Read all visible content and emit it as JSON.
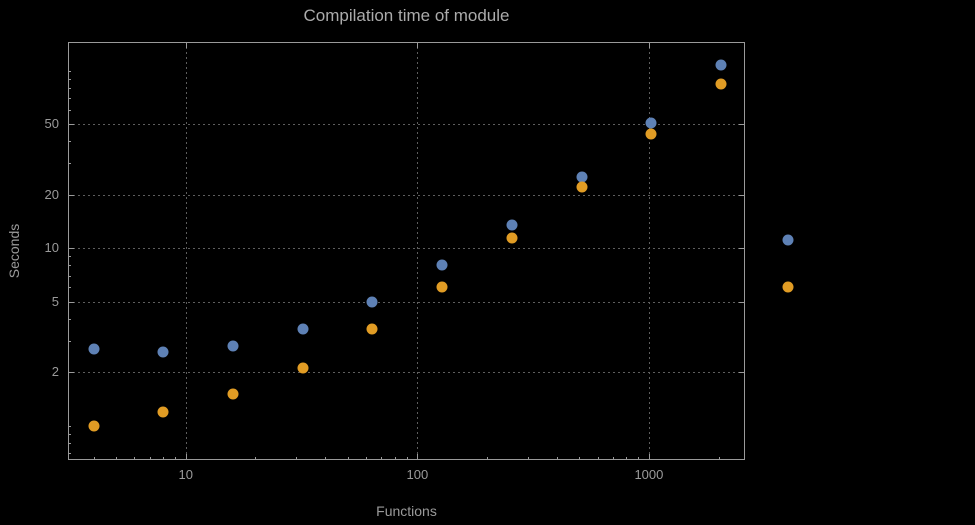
{
  "chart_data": {
    "type": "scatter",
    "title": "Compilation time of module",
    "xlabel": "Functions",
    "ylabel": "Seconds",
    "xscale": "log",
    "yscale": "log",
    "xlim": [
      3.1,
      2600
    ],
    "ylim": [
      0.64,
      145
    ],
    "grid": true,
    "x": [
      4,
      8,
      16,
      32,
      64,
      128,
      256,
      512,
      1024,
      2048
    ],
    "series": [
      {
        "name": "blue-series",
        "color": "#5e81b5",
        "values": [
          2.7,
          2.6,
          2.8,
          3.5,
          5.0,
          8.0,
          13.5,
          25,
          51,
          107
        ]
      },
      {
        "name": "orange-series",
        "color": "#e19c24",
        "values": [
          1.0,
          1.2,
          1.5,
          2.1,
          3.5,
          6.0,
          11.4,
          22,
          44,
          84
        ]
      }
    ],
    "xticks": [
      {
        "value": 10,
        "label": "10"
      },
      {
        "value": 100,
        "label": "100"
      },
      {
        "value": 1000,
        "label": "1000"
      }
    ],
    "yticks": [
      {
        "value": 2,
        "label": "2"
      },
      {
        "value": 5,
        "label": "5"
      },
      {
        "value": 10,
        "label": "10"
      },
      {
        "value": 20,
        "label": "20"
      },
      {
        "value": 50,
        "label": "50"
      }
    ],
    "legend_position": "right"
  },
  "legend": {
    "markers": [
      {
        "name": "blue-legend-marker",
        "color": "#5e81b5"
      },
      {
        "name": "orange-legend-marker",
        "color": "#e19c24"
      }
    ]
  },
  "colors": {
    "background": "#000000",
    "frame": "#9a9a9a",
    "grid": "#5e5e5e",
    "text": "#9a9a9a",
    "title": "#ababab"
  }
}
